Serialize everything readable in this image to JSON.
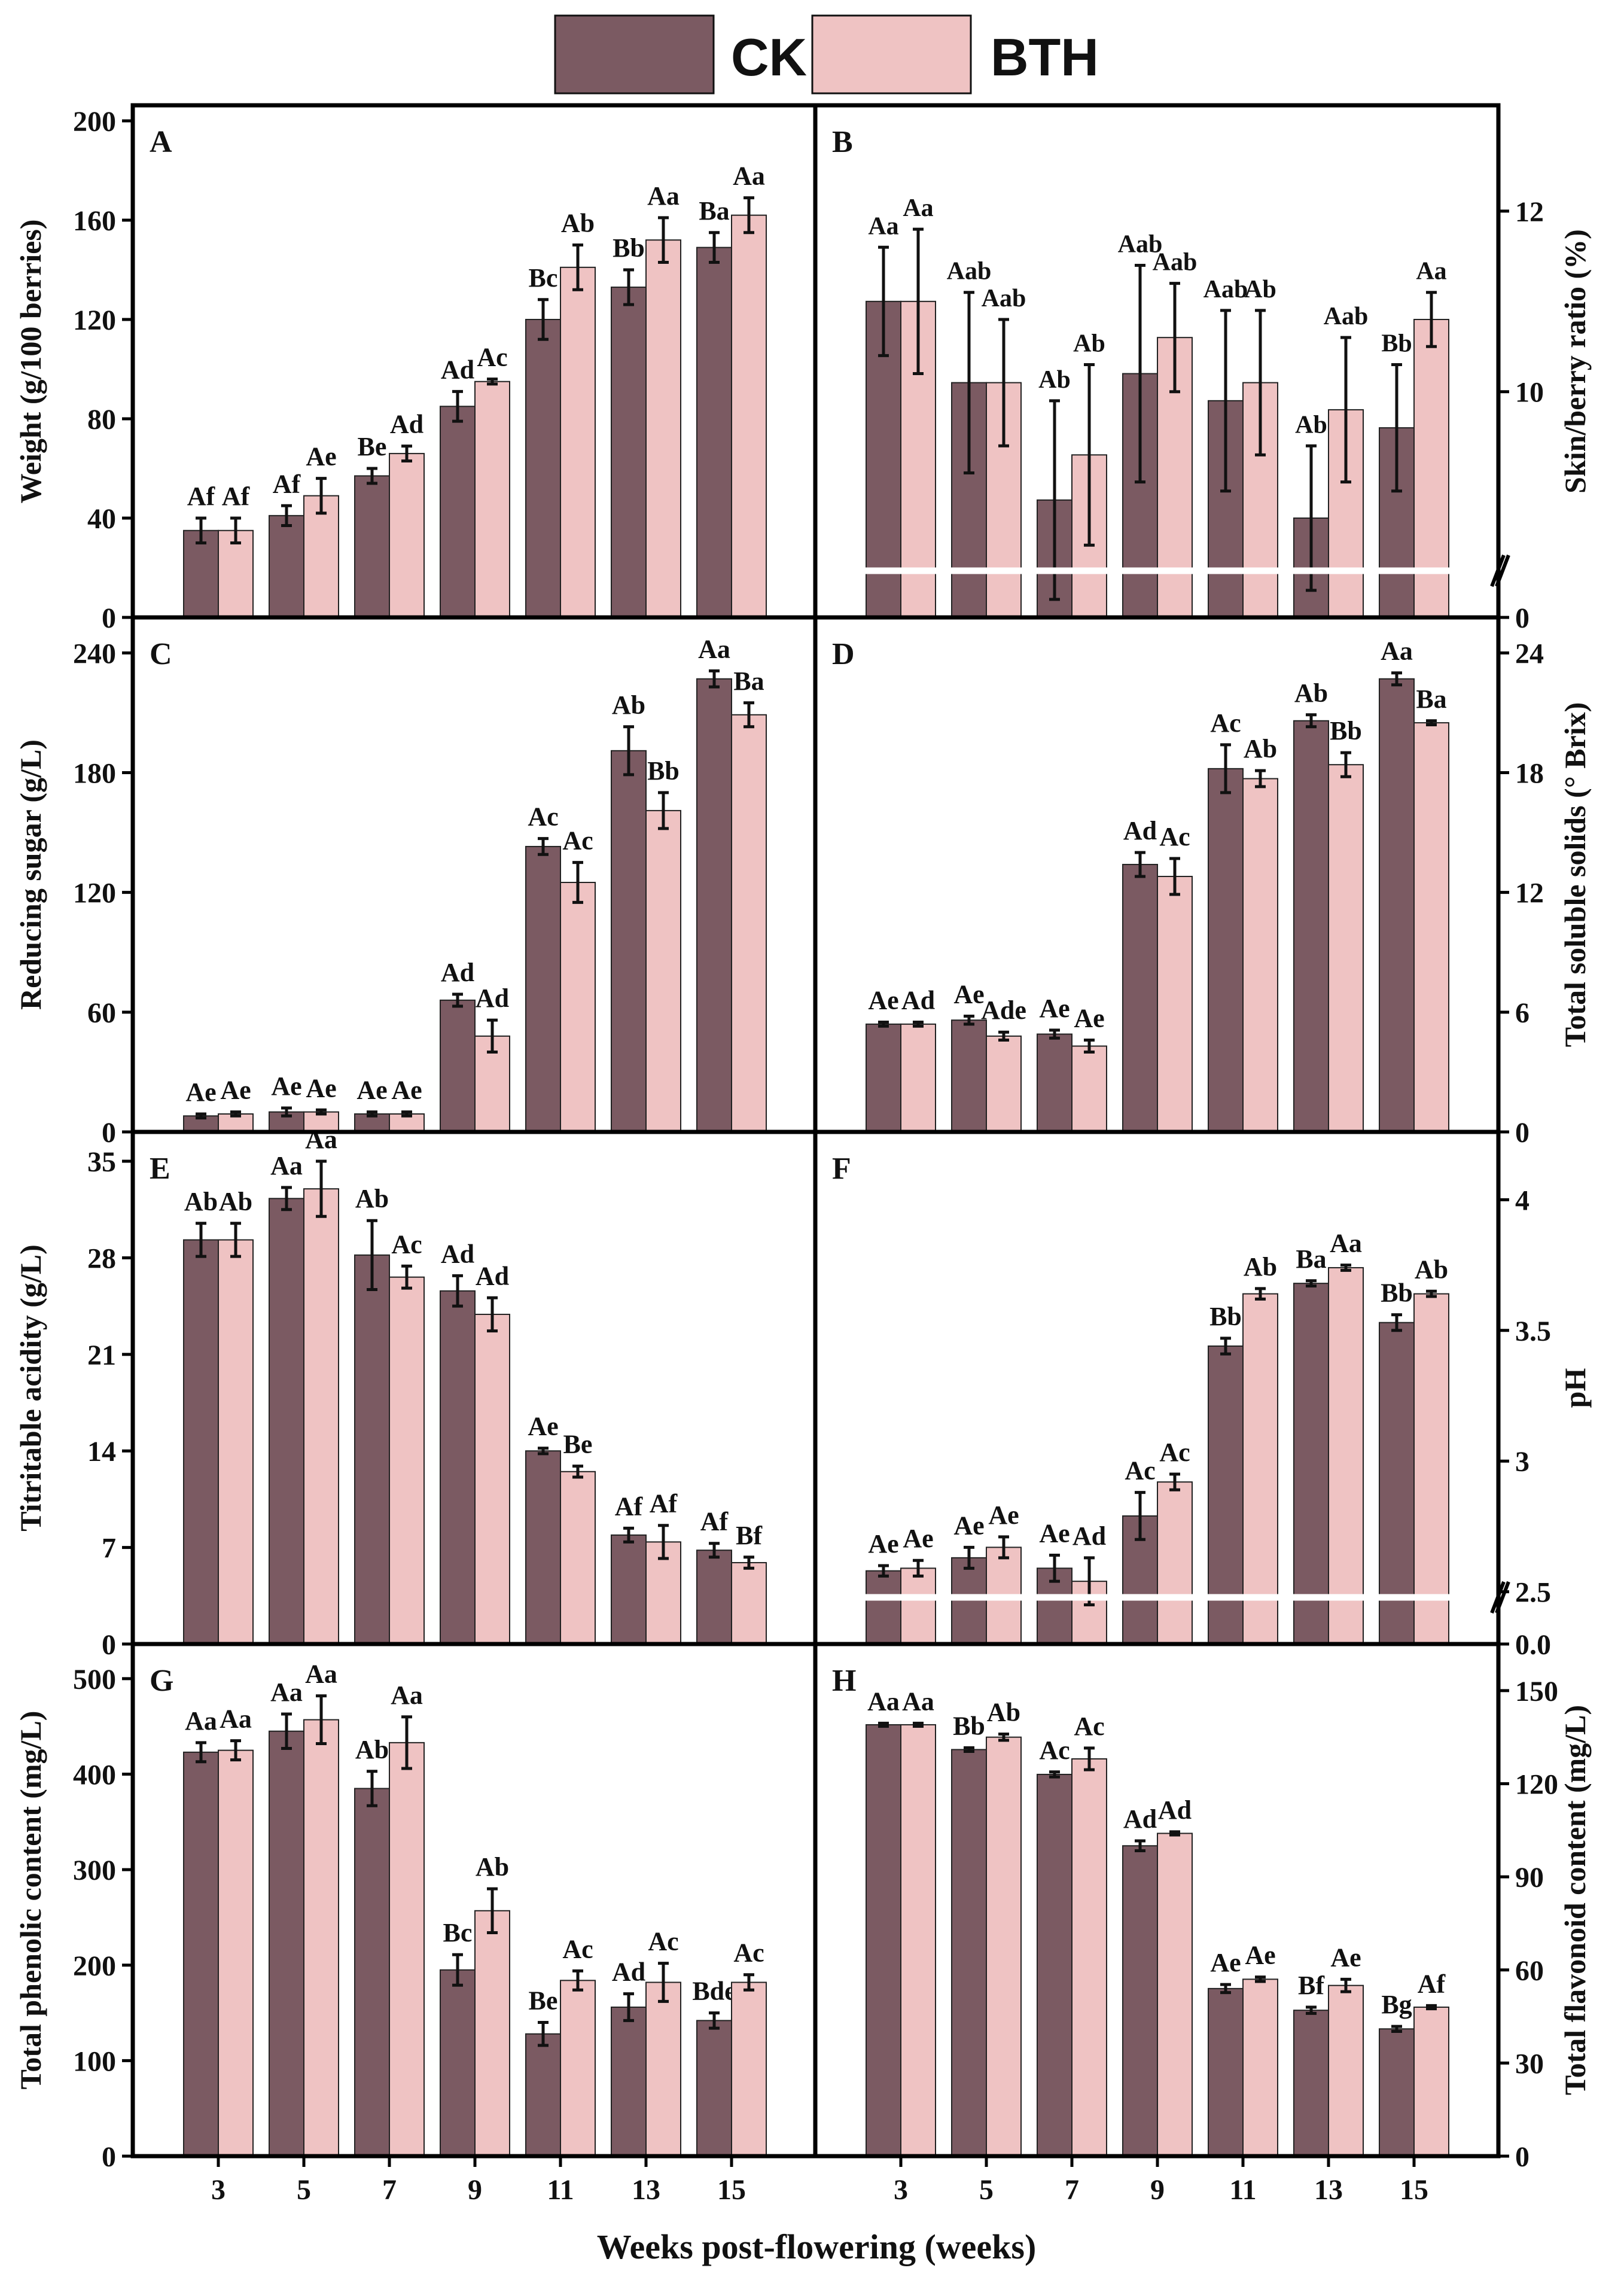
{
  "legend": {
    "ck": "CK",
    "bth": "BTH"
  },
  "x_axis_title": "Weeks post-flowering (weeks)",
  "colors": {
    "ck": "#7b5a62",
    "bth": "#efc3c3",
    "error_bar": "#111111",
    "axis": "#000000",
    "break_line": "#ffffff"
  },
  "chart_data": [
    {
      "panel": "A",
      "type": "bar",
      "side": "left",
      "ylabel": "Weight (g/100 berries)",
      "ylim": [
        0,
        200
      ],
      "yticks": [
        0,
        40,
        80,
        120,
        160,
        200
      ],
      "categories": [
        "3",
        "5",
        "7",
        "9",
        "11",
        "13",
        "15"
      ],
      "series": [
        {
          "name": "CK",
          "values": [
            35,
            41,
            57,
            85,
            120,
            133,
            149
          ],
          "errors": [
            5,
            4,
            3,
            6,
            8,
            7,
            6
          ],
          "labels": [
            "Af",
            "Af",
            "Be",
            "Ad",
            "Bc",
            "Bb",
            "Ba"
          ]
        },
        {
          "name": "BTH",
          "values": [
            35,
            49,
            66,
            95,
            141,
            152,
            162
          ],
          "errors": [
            5,
            7,
            3,
            1,
            9,
            9,
            7
          ],
          "labels": [
            "Af",
            "Ae",
            "Ad",
            "Ac",
            "Ab",
            "Aa",
            "Aa"
          ]
        }
      ]
    },
    {
      "panel": "B",
      "type": "bar",
      "side": "right",
      "ylabel": "Skin/berry ratio (%)",
      "ylim": [
        7.5,
        13
      ],
      "yticks": [
        10,
        12
      ],
      "ytick_zero_label": "0",
      "axis_break": true,
      "categories": [
        "3",
        "5",
        "7",
        "9",
        "11",
        "13",
        "15"
      ],
      "series": [
        {
          "name": "CK",
          "values": [
            11.0,
            10.1,
            8.8,
            10.2,
            9.9,
            8.6,
            9.6
          ],
          "errors": [
            0.6,
            1.0,
            1.1,
            1.2,
            1.0,
            0.8,
            0.7
          ],
          "labels": [
            "Aa",
            "Aab",
            "Ab",
            "Aab",
            "Aab",
            "Ab",
            "Bb"
          ]
        },
        {
          "name": "BTH",
          "values": [
            11.0,
            10.1,
            9.3,
            10.6,
            10.1,
            9.8,
            10.8
          ],
          "errors": [
            0.8,
            0.7,
            1.0,
            0.6,
            0.8,
            0.8,
            0.3
          ],
          "labels": [
            "Aa",
            "Aab",
            "Ab",
            "Aab",
            "Ab",
            "Aab",
            "Aa"
          ]
        }
      ]
    },
    {
      "panel": "C",
      "type": "bar",
      "side": "left",
      "ylabel": "Reducing sugar (g/L)",
      "ylim": [
        0,
        250
      ],
      "yticks": [
        0,
        60,
        120,
        180,
        240
      ],
      "categories": [
        "3",
        "5",
        "7",
        "9",
        "11",
        "13",
        "15"
      ],
      "series": [
        {
          "name": "CK",
          "values": [
            8,
            10,
            9,
            66,
            143,
            191,
            227
          ],
          "errors": [
            1,
            2,
            1,
            3,
            4,
            12,
            4
          ],
          "labels": [
            "Ae",
            "Ae",
            "Ae",
            "Ad",
            "Ac",
            "Ab",
            "Aa"
          ]
        },
        {
          "name": "BTH",
          "values": [
            9,
            10,
            9,
            48,
            125,
            161,
            209
          ],
          "errors": [
            1,
            1,
            1,
            8,
            10,
            9,
            6
          ],
          "labels": [
            "Ae",
            "Ae",
            "Ae",
            "Ad",
            "Ac",
            "Bb",
            "Ba"
          ]
        }
      ]
    },
    {
      "panel": "D",
      "type": "bar",
      "side": "right",
      "ylabel": "Total soluble solids (° Brix)",
      "ylim": [
        0,
        25
      ],
      "yticks": [
        0,
        6,
        12,
        18,
        24
      ],
      "categories": [
        "3",
        "5",
        "7",
        "9",
        "11",
        "13",
        "15"
      ],
      "series": [
        {
          "name": "CK",
          "values": [
            5.4,
            5.6,
            4.9,
            13.4,
            18.2,
            20.6,
            22.7
          ],
          "errors": [
            0.1,
            0.2,
            0.2,
            0.6,
            1.2,
            0.3,
            0.3
          ],
          "labels": [
            "Ae",
            "Ae",
            "Ae",
            "Ad",
            "Ac",
            "Ab",
            "Aa"
          ]
        },
        {
          "name": "BTH",
          "values": [
            5.4,
            4.8,
            4.3,
            12.8,
            17.7,
            18.4,
            20.5
          ],
          "errors": [
            0.1,
            0.2,
            0.3,
            0.9,
            0.4,
            0.6,
            0.1
          ],
          "labels": [
            "Ad",
            "Ade",
            "Ae",
            "Ac",
            "Ab",
            "Bb",
            "Ba"
          ]
        }
      ]
    },
    {
      "panel": "E",
      "type": "bar",
      "side": "left",
      "ylabel": "Titritable acidity (g/L)",
      "ylim": [
        0,
        36
      ],
      "yticks": [
        0,
        7,
        14,
        21,
        28,
        35
      ],
      "categories": [
        "3",
        "5",
        "7",
        "9",
        "11",
        "13",
        "15"
      ],
      "series": [
        {
          "name": "CK",
          "values": [
            29.3,
            32.3,
            28.2,
            25.6,
            14.0,
            7.9,
            6.8
          ],
          "errors": [
            1.2,
            0.8,
            2.5,
            1.1,
            0.2,
            0.5,
            0.5
          ],
          "labels": [
            "Ab",
            "Aa",
            "Ab",
            "Ad",
            "Ae",
            "Af",
            "Af"
          ]
        },
        {
          "name": "BTH",
          "values": [
            29.3,
            33.0,
            26.6,
            23.9,
            12.5,
            7.4,
            5.9
          ],
          "errors": [
            1.2,
            2.0,
            0.8,
            1.2,
            0.4,
            1.2,
            0.4
          ],
          "labels": [
            "Ab",
            "Aa",
            "Ac",
            "Ad",
            "Be",
            "Af",
            "Bf"
          ]
        }
      ]
    },
    {
      "panel": "F",
      "type": "bar",
      "side": "right",
      "ylabel": "pH",
      "ylim": [
        2.3,
        4.2
      ],
      "yticks": [
        2.5,
        3.0,
        3.5,
        4.0
      ],
      "ytick_zero_label": "0.0",
      "axis_break": true,
      "categories": [
        "3",
        "5",
        "7",
        "9",
        "11",
        "13",
        "15"
      ],
      "series": [
        {
          "name": "CK",
          "values": [
            2.58,
            2.63,
            2.59,
            2.79,
            3.44,
            3.68,
            3.53
          ],
          "errors": [
            0.02,
            0.04,
            0.05,
            0.09,
            0.03,
            0.01,
            0.03
          ],
          "labels": [
            "Ae",
            "Ae",
            "Ae",
            "Ac",
            "Bb",
            "Ba",
            "Bb"
          ]
        },
        {
          "name": "BTH",
          "values": [
            2.59,
            2.67,
            2.54,
            2.92,
            3.64,
            3.74,
            3.64
          ],
          "errors": [
            0.03,
            0.04,
            0.09,
            0.03,
            0.02,
            0.01,
            0.01
          ],
          "labels": [
            "Ae",
            "Ae",
            "Ad",
            "Ac",
            "Ab",
            "Aa",
            "Ab"
          ]
        }
      ]
    },
    {
      "panel": "G",
      "type": "bar",
      "side": "left",
      "ylabel": "Total phenolic content (mg/L)",
      "ylim": [
        0,
        520
      ],
      "yticks": [
        0,
        100,
        200,
        300,
        400,
        500
      ],
      "categories": [
        "3",
        "5",
        "7",
        "9",
        "11",
        "13",
        "15"
      ],
      "series": [
        {
          "name": "CK",
          "values": [
            423,
            445,
            385,
            195,
            128,
            156,
            142
          ],
          "errors": [
            10,
            18,
            18,
            16,
            12,
            14,
            8
          ],
          "labels": [
            "Aa",
            "Aa",
            "Ab",
            "Bc",
            "Be",
            "Ad",
            "Bde"
          ]
        },
        {
          "name": "BTH",
          "values": [
            425,
            457,
            433,
            257,
            184,
            182,
            182
          ],
          "errors": [
            10,
            25,
            27,
            23,
            10,
            20,
            8
          ],
          "labels": [
            "Aa",
            "Aa",
            "Aa",
            "Ab",
            "Ac",
            "Ac",
            "Ac"
          ]
        }
      ]
    },
    {
      "panel": "H",
      "type": "bar",
      "side": "right",
      "ylabel": "Total flavonoid content (mg/L)",
      "ylim": [
        0,
        160
      ],
      "yticks": [
        0,
        30,
        60,
        90,
        120,
        150
      ],
      "categories": [
        "3",
        "5",
        "7",
        "9",
        "11",
        "13",
        "15"
      ],
      "series": [
        {
          "name": "CK",
          "values": [
            139,
            131,
            123,
            100,
            54,
            47,
            41
          ],
          "errors": [
            0.5,
            0.6,
            0.8,
            1.6,
            1.3,
            1.0,
            0.8
          ],
          "labels": [
            "Aa",
            "Bb",
            "Ac",
            "Ad",
            "Ae",
            "Bf",
            "Bg"
          ]
        },
        {
          "name": "BTH",
          "values": [
            139,
            135,
            128,
            104,
            57,
            55,
            48
          ],
          "errors": [
            0.5,
            1.0,
            3.5,
            0.5,
            0.7,
            2.0,
            0.5
          ],
          "labels": [
            "Aa",
            "Ab",
            "Ac",
            "Ad",
            "Ae",
            "Ae",
            "Af"
          ]
        }
      ]
    }
  ]
}
